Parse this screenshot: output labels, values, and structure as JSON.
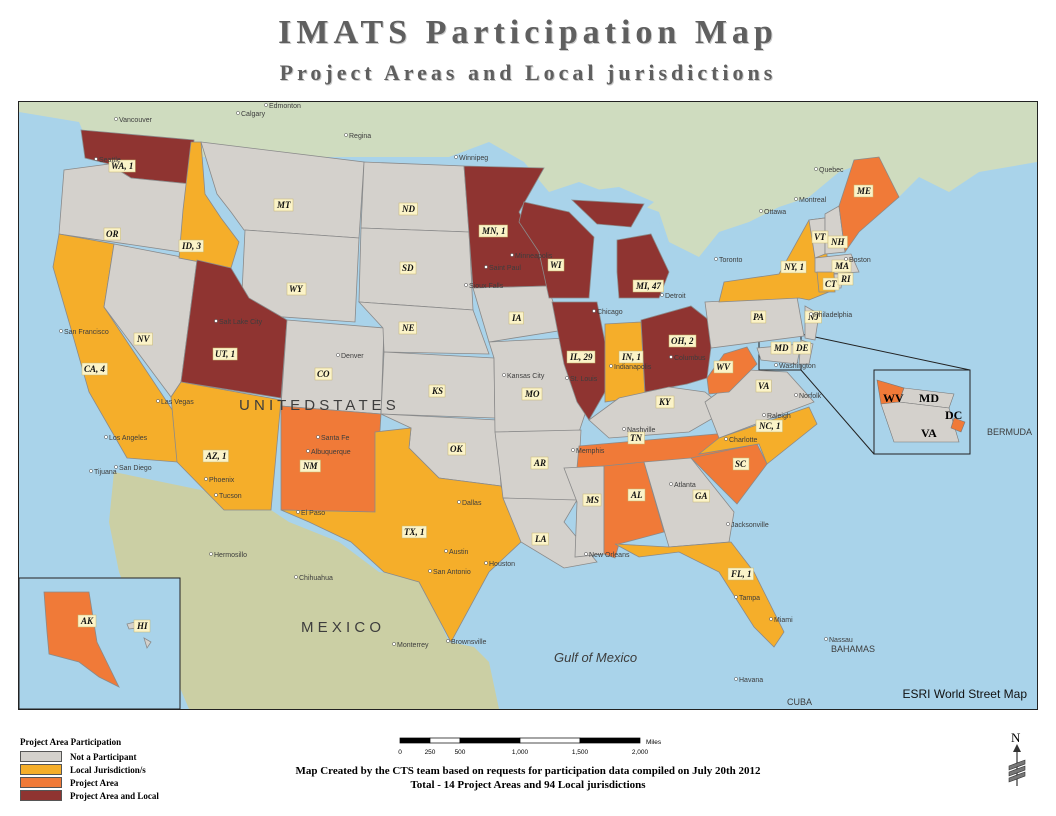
{
  "title": "IMATS Participation Map",
  "subtitle": "Project Areas and Local jurisdictions",
  "colors": {
    "not_participant": "#d4d1cc",
    "local": "#f5ae2a",
    "project_area": "#f07a38",
    "project_and_local": "#8f3431",
    "water": "#a9d3ea",
    "canada": "#cfdcbf",
    "mexico": "#cbcfa4"
  },
  "states": [
    {
      "abbr": "WA",
      "label": "WA, 1",
      "category": "project_and_local"
    },
    {
      "abbr": "OR",
      "label": "OR",
      "category": "not_participant"
    },
    {
      "abbr": "CA",
      "label": "CA, 4",
      "category": "local"
    },
    {
      "abbr": "NV",
      "label": "NV",
      "category": "not_participant"
    },
    {
      "abbr": "ID",
      "label": "ID, 3",
      "category": "local"
    },
    {
      "abbr": "MT",
      "label": "MT",
      "category": "not_participant"
    },
    {
      "abbr": "WY",
      "label": "WY",
      "category": "not_participant"
    },
    {
      "abbr": "UT",
      "label": "UT, 1",
      "category": "project_and_local"
    },
    {
      "abbr": "CO",
      "label": "CO",
      "category": "not_participant"
    },
    {
      "abbr": "AZ",
      "label": "AZ, 1",
      "category": "local"
    },
    {
      "abbr": "NM",
      "label": "NM",
      "category": "project_area"
    },
    {
      "abbr": "ND",
      "label": "ND",
      "category": "not_participant"
    },
    {
      "abbr": "SD",
      "label": "SD",
      "category": "not_participant"
    },
    {
      "abbr": "NE",
      "label": "NE",
      "category": "not_participant"
    },
    {
      "abbr": "KS",
      "label": "KS",
      "category": "not_participant"
    },
    {
      "abbr": "OK",
      "label": "OK",
      "category": "not_participant"
    },
    {
      "abbr": "TX",
      "label": "TX, 1",
      "category": "local"
    },
    {
      "abbr": "MN",
      "label": "MN, 1",
      "category": "project_and_local"
    },
    {
      "abbr": "IA",
      "label": "IA",
      "category": "not_participant"
    },
    {
      "abbr": "MO",
      "label": "MO",
      "category": "not_participant"
    },
    {
      "abbr": "AR",
      "label": "AR",
      "category": "not_participant"
    },
    {
      "abbr": "LA",
      "label": "LA",
      "category": "not_participant"
    },
    {
      "abbr": "WI",
      "label": "WI",
      "category": "project_and_local"
    },
    {
      "abbr": "IL",
      "label": "IL, 29",
      "category": "project_and_local"
    },
    {
      "abbr": "MI",
      "label": "MI, 47",
      "category": "project_and_local"
    },
    {
      "abbr": "IN",
      "label": "IN, 1",
      "category": "local"
    },
    {
      "abbr": "OH",
      "label": "OH, 2",
      "category": "project_and_local"
    },
    {
      "abbr": "KY",
      "label": "KY",
      "category": "not_participant"
    },
    {
      "abbr": "TN",
      "label": "TN",
      "category": "project_area"
    },
    {
      "abbr": "MS",
      "label": "MS",
      "category": "not_participant"
    },
    {
      "abbr": "AL",
      "label": "AL",
      "category": "project_area"
    },
    {
      "abbr": "GA",
      "label": "GA",
      "category": "not_participant"
    },
    {
      "abbr": "FL",
      "label": "FL, 1",
      "category": "local"
    },
    {
      "abbr": "SC",
      "label": "SC",
      "category": "project_area"
    },
    {
      "abbr": "NC",
      "label": "NC, 1",
      "category": "local"
    },
    {
      "abbr": "VA",
      "label": "VA",
      "category": "not_participant"
    },
    {
      "abbr": "WV",
      "label": "WV",
      "category": "project_area"
    },
    {
      "abbr": "PA",
      "label": "PA",
      "category": "not_participant"
    },
    {
      "abbr": "NY",
      "label": "NY, 1",
      "category": "local"
    },
    {
      "abbr": "NJ",
      "label": "NJ",
      "category": "not_participant"
    },
    {
      "abbr": "MD",
      "label": "MD",
      "category": "not_participant"
    },
    {
      "abbr": "DE",
      "label": "DE",
      "category": "not_participant"
    },
    {
      "abbr": "VT",
      "label": "VT",
      "category": "not_participant"
    },
    {
      "abbr": "NH",
      "label": "NH",
      "category": "not_participant"
    },
    {
      "abbr": "MA",
      "label": "MA",
      "category": "not_participant"
    },
    {
      "abbr": "CT",
      "label": "CT",
      "category": "local"
    },
    {
      "abbr": "RI",
      "label": "RI",
      "category": "not_participant"
    },
    {
      "abbr": "ME",
      "label": "ME",
      "category": "project_area"
    },
    {
      "abbr": "AK",
      "label": "AK",
      "category": "project_area"
    },
    {
      "abbr": "HI",
      "label": "HI",
      "category": "not_participant"
    }
  ],
  "inset": {
    "labels": [
      "WV",
      "MD",
      "DC",
      "VA"
    ]
  },
  "places": {
    "country_us": "U N I T E D   S T A T E S",
    "country_mexico": "M E X I C O",
    "gulf": "Gulf of Mexico",
    "bermuda": "BERMUDA",
    "bahamas": "BAHAMAS",
    "cuba": "CUBA",
    "cities": [
      "Seattle",
      "Salt Lake City",
      "San Francisco",
      "Los Angeles",
      "San Diego",
      "Las Vegas",
      "Phoenix",
      "Tucson",
      "Denver",
      "Santa Fe",
      "Albuquerque",
      "El Paso",
      "Dallas",
      "Austin",
      "San Antonio",
      "Houston",
      "Kansas City",
      "St. Louis",
      "Chicago",
      "Detroit",
      "Indianapolis",
      "Columbus",
      "Memphis",
      "Nashville",
      "Atlanta",
      "Jacksonville",
      "Tampa",
      "Miami",
      "New Orleans",
      "Minneapolis",
      "Saint Paul",
      "Sioux Falls",
      "Winnipeg",
      "Toronto",
      "Montreal",
      "Ottawa",
      "Quebec",
      "Boston",
      "Philadelphia",
      "Washington",
      "Norfolk",
      "Raleigh",
      "Charlotte",
      "Monterrey",
      "Chihuahua",
      "Hermosillo",
      "Tijuana",
      "Brownsville",
      "Havana",
      "Nassau",
      "Calgary",
      "Vancouver",
      "Edmonton",
      "Regina"
    ]
  },
  "esri_credit": "ESRI World Street Map",
  "legend": {
    "title": "Project Area Participation",
    "items": [
      {
        "key": "not_participant",
        "label": "Not a Participant"
      },
      {
        "key": "local",
        "label": "Local Jurisdiction/s"
      },
      {
        "key": "project_area",
        "label": "Project Area"
      },
      {
        "key": "project_and_local",
        "label": "Project Area and Local"
      }
    ]
  },
  "scale": {
    "ticks": [
      "0",
      "250",
      "500",
      "1,000",
      "1,500",
      "2,000"
    ],
    "values": [
      0,
      250,
      500,
      1000,
      1500,
      2000
    ],
    "unit": "Miles"
  },
  "footer": {
    "line1": "Map Created by the CTS team based on requests for participation data compiled on July 20th 2012",
    "line2": "Total - 14 Project Areas and 94 Local jurisdictions"
  },
  "north_arrow": "N"
}
